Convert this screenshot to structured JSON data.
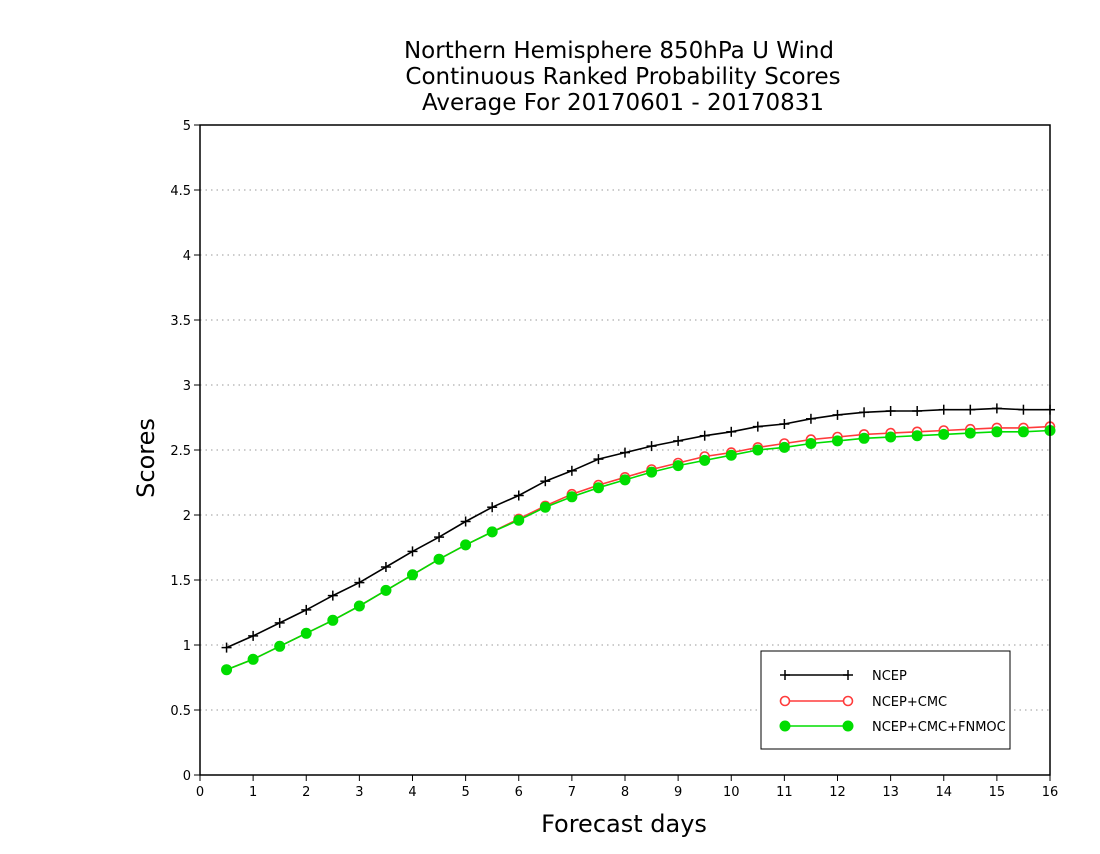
{
  "chart_data": {
    "type": "line",
    "title_lines": [
      "Northern Hemisphere 850hPa U Wind",
      "Continuous Ranked Probability Scores",
      "Average For 20170601 - 20170831"
    ],
    "xlabel": "Forecast days",
    "ylabel": "Scores",
    "xlim": [
      0,
      16
    ],
    "ylim": [
      0,
      5
    ],
    "xticks": [
      "0",
      "1",
      "2",
      "3",
      "4",
      "5",
      "6",
      "7",
      "8",
      "9",
      "10",
      "11",
      "12",
      "13",
      "14",
      "15",
      "16"
    ],
    "yticks": [
      "0",
      "0.5",
      "1",
      "1.5",
      "2",
      "2.5",
      "3",
      "3.5",
      "4",
      "4.5",
      "5"
    ],
    "grid": true,
    "legend_position": "bottom-right",
    "x": [
      0.5,
      1,
      1.5,
      2,
      2.5,
      3,
      3.5,
      4,
      4.5,
      5,
      5.5,
      6,
      6.5,
      7,
      7.5,
      8,
      8.5,
      9,
      9.5,
      10,
      10.5,
      11,
      11.5,
      12,
      12.5,
      13,
      13.5,
      14,
      14.5,
      15,
      15.5,
      16
    ],
    "series": [
      {
        "name": "NCEP",
        "color": "#000000",
        "marker": "plus",
        "values": [
          0.98,
          1.07,
          1.17,
          1.27,
          1.38,
          1.48,
          1.6,
          1.72,
          1.83,
          1.95,
          2.06,
          2.15,
          2.26,
          2.34,
          2.43,
          2.48,
          2.53,
          2.57,
          2.61,
          2.64,
          2.68,
          2.7,
          2.74,
          2.77,
          2.79,
          2.8,
          2.8,
          2.81,
          2.81,
          2.82,
          2.81,
          2.81
        ]
      },
      {
        "name": "NCEP+CMC",
        "color": "#ff3b3b",
        "marker": "open-circle",
        "values": [
          0.81,
          0.89,
          0.99,
          1.09,
          1.19,
          1.3,
          1.42,
          1.54,
          1.66,
          1.77,
          1.87,
          1.97,
          2.07,
          2.16,
          2.23,
          2.29,
          2.35,
          2.4,
          2.45,
          2.48,
          2.52,
          2.55,
          2.58,
          2.6,
          2.62,
          2.63,
          2.64,
          2.65,
          2.66,
          2.67,
          2.67,
          2.68
        ]
      },
      {
        "name": "NCEP+CMC+FNMOC",
        "color": "#00dd00",
        "marker": "filled-circle",
        "values": [
          0.81,
          0.89,
          0.99,
          1.09,
          1.19,
          1.3,
          1.42,
          1.54,
          1.66,
          1.77,
          1.87,
          1.96,
          2.06,
          2.14,
          2.21,
          2.27,
          2.33,
          2.38,
          2.42,
          2.46,
          2.5,
          2.52,
          2.55,
          2.57,
          2.59,
          2.6,
          2.61,
          2.62,
          2.63,
          2.64,
          2.64,
          2.65
        ]
      }
    ]
  }
}
